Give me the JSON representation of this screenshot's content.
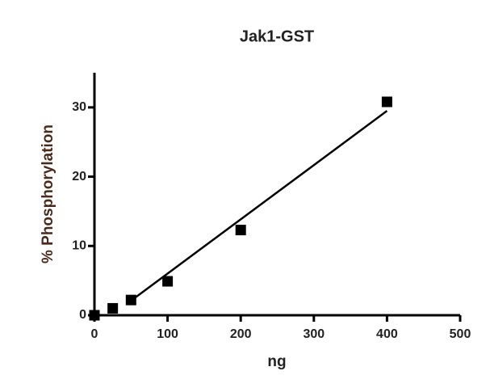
{
  "chart_data": {
    "type": "scatter",
    "title": "Jak1-GST",
    "x_label": "ng",
    "y_label": "% Phosphorylation",
    "x": [
      0,
      25,
      50,
      100,
      200,
      400
    ],
    "values": [
      0,
      1.0,
      2.2,
      4.9,
      12.3,
      30.8
    ],
    "color": "#000000",
    "fit": {
      "x": [
        50,
        400
      ],
      "values": [
        2.1,
        29.5
      ],
      "color": "#000000"
    },
    "xlim": [
      0,
      500
    ],
    "ylim": [
      0,
      35
    ],
    "xticks": [
      0,
      100,
      200,
      300,
      400,
      500
    ],
    "yticks": [
      0,
      10,
      20,
      30
    ]
  }
}
